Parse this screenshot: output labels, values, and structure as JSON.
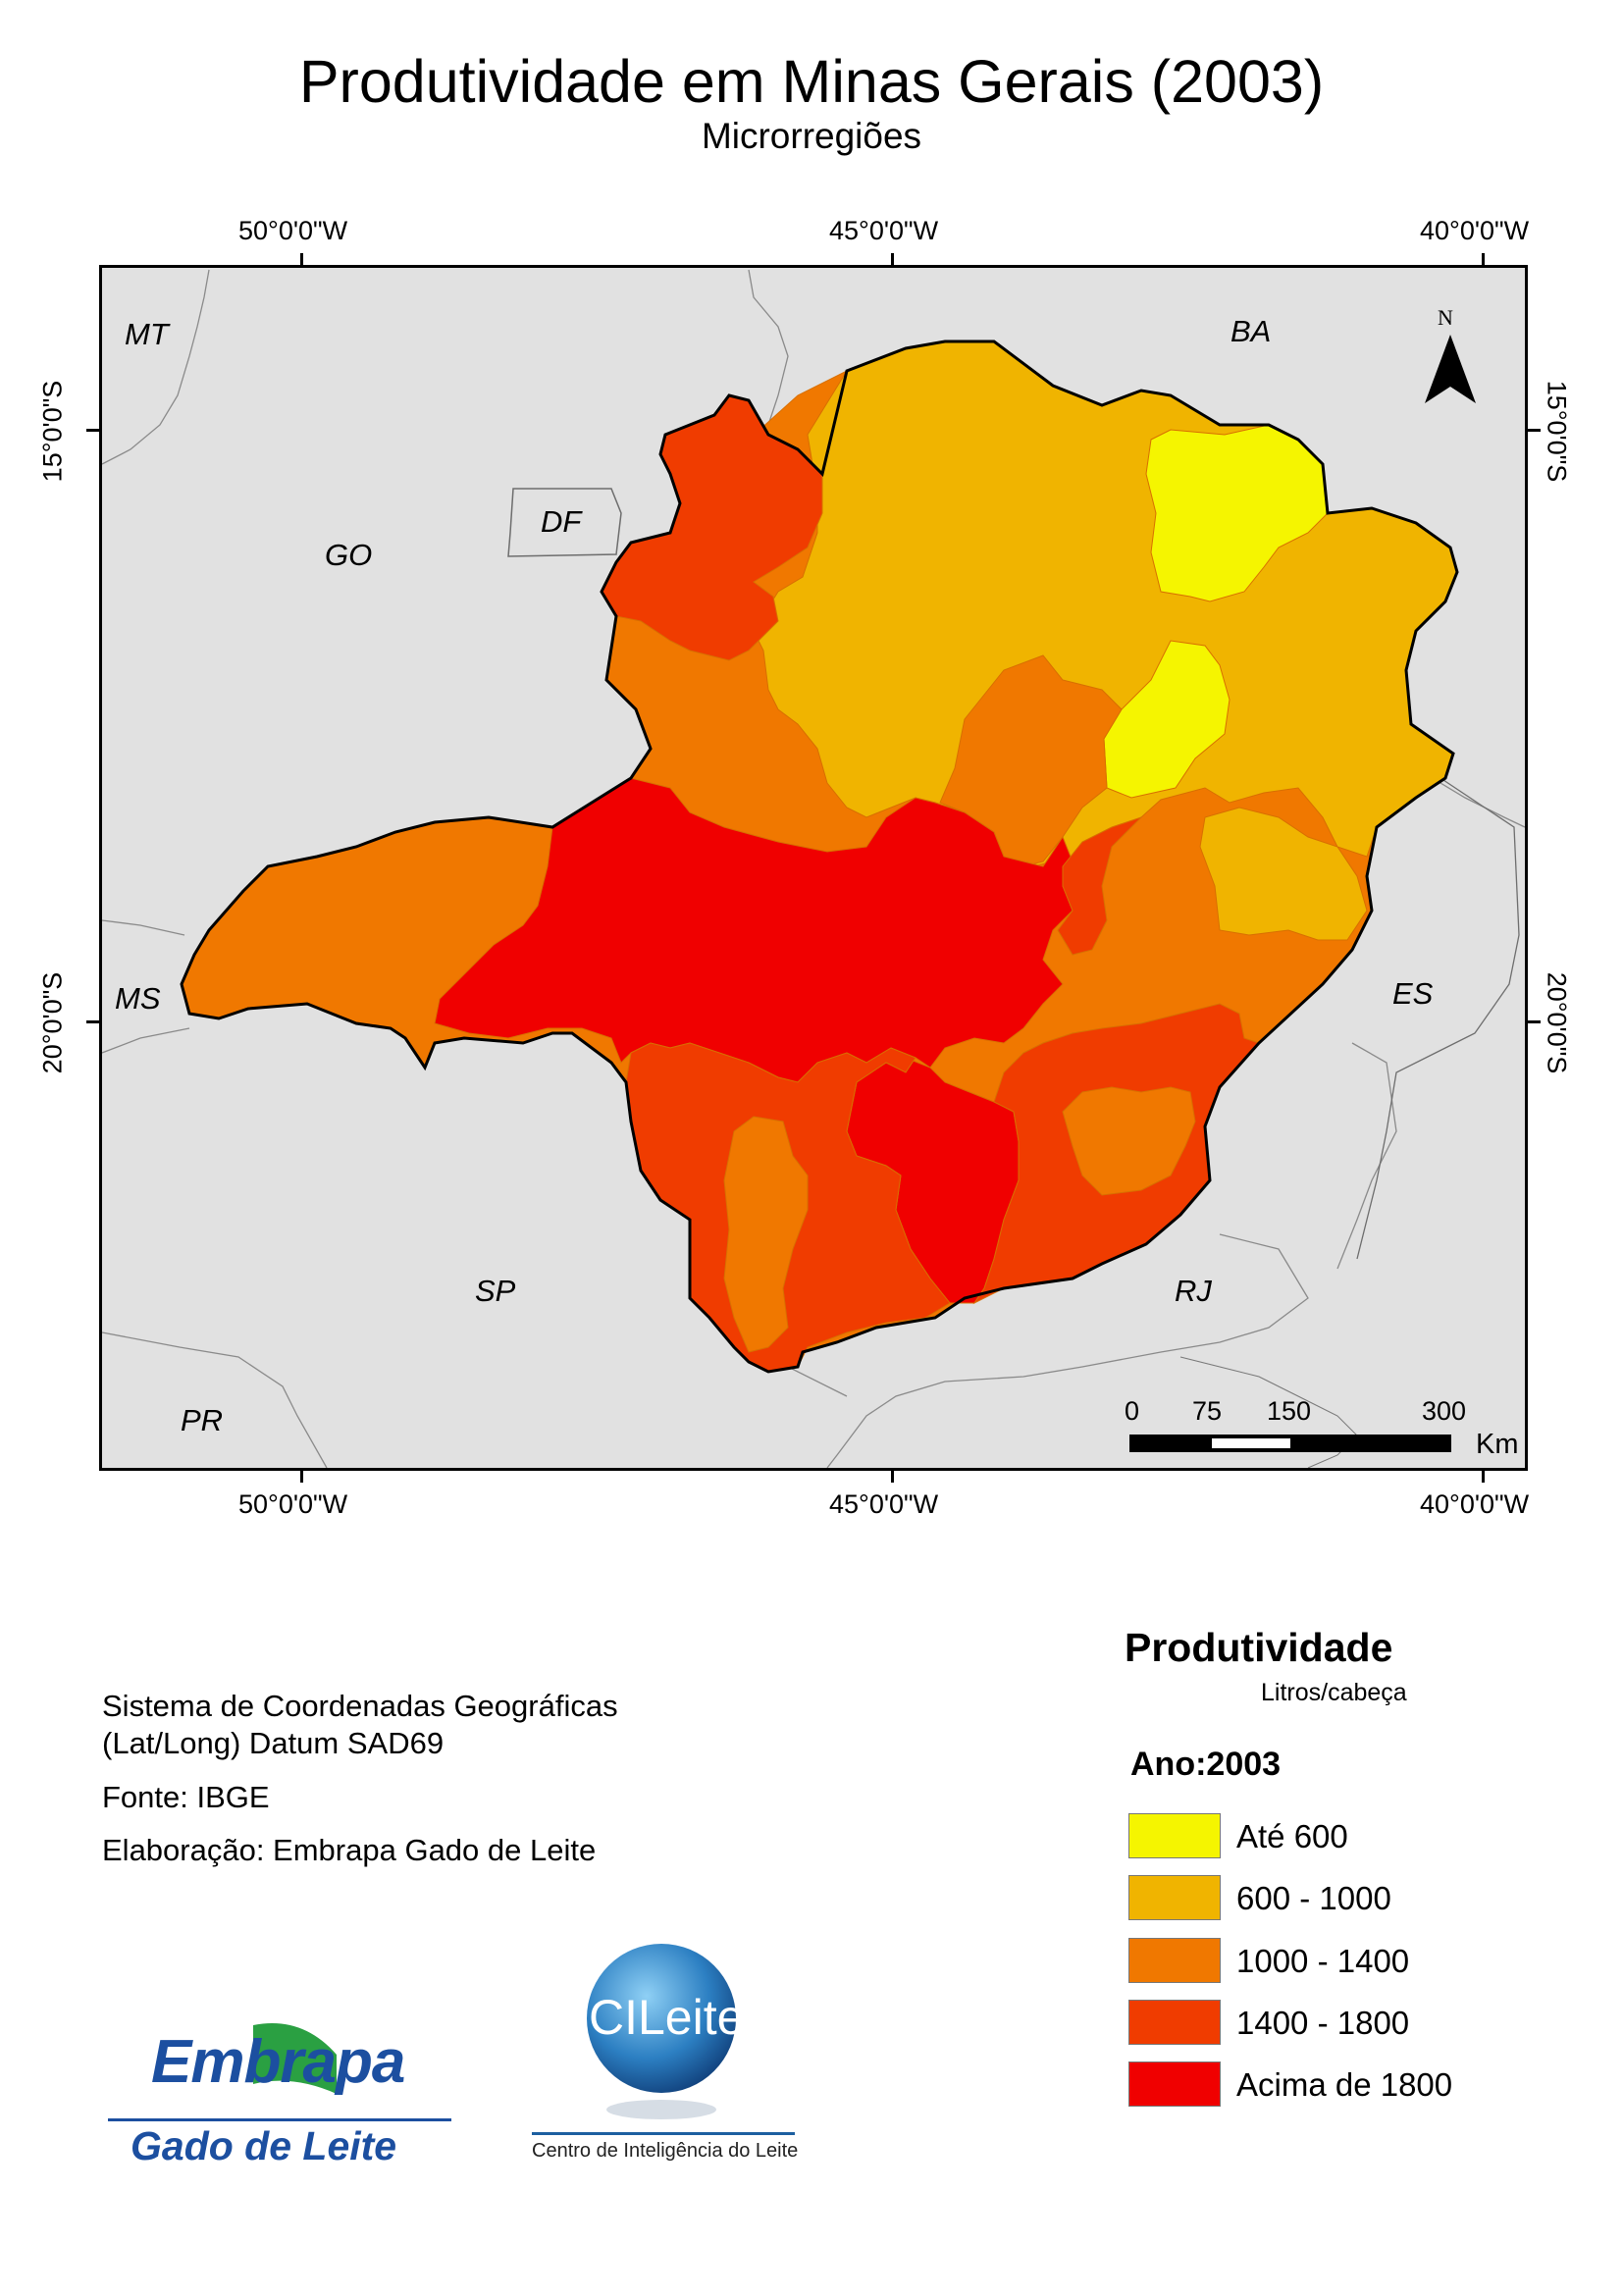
{
  "title": "Produtividade em Minas Gerais (2003)",
  "subtitle": "Microrregiões",
  "axes": {
    "longitudes": [
      "50°0'0\"W",
      "45°0'0\"W",
      "40°0'0\"W"
    ],
    "latitudes": [
      "15°0'0\"S",
      "20°0'0\"S"
    ]
  },
  "map": {
    "neighbors": [
      "MT",
      "BA",
      "DF",
      "GO",
      "MS",
      "ES",
      "SP",
      "RJ",
      "PR"
    ],
    "north_label": "N",
    "scale_bar": {
      "ticks": [
        "0",
        "75",
        "150",
        "300"
      ],
      "unit": "Km"
    },
    "background_color": "#e1e1e1",
    "state": "Minas Gerais",
    "regions_by_class": {
      "Até 600": [
        "north-east block",
        "central-north block"
      ],
      "600 - 1000": [
        "north",
        "north-east",
        "east-central"
      ],
      "1000 - 1400": [
        "triângulo mineiro",
        "north-west",
        "central-east",
        "south pocket"
      ],
      "1400 - 1800": [
        "north-west tip",
        "south-west",
        "south",
        "south-east"
      ],
      "Acima de 1800": [
        "central belt",
        "south-central"
      ]
    }
  },
  "metadata": {
    "line1": "Sistema de Coordenadas Geográficas",
    "line2": "(Lat/Long) Datum SAD69",
    "source": "Fonte: IBGE",
    "author": "Elaboração: Embrapa Gado de Leite"
  },
  "logos": {
    "embrapa_word": "Embrapa",
    "embrapa_sub": "Gado de Leite",
    "cileite_word": "CILeite",
    "cileite_sub": "Centro de Inteligência do Leite"
  },
  "legend": {
    "title": "Produtividade",
    "unit": "Litros/cabeça",
    "year_label": "Ano:2003",
    "classes": [
      {
        "label": "Até 600",
        "color": "#f5f500"
      },
      {
        "label": "600 - 1000",
        "color": "#f0b400"
      },
      {
        "label": "1000 - 1400",
        "color": "#f07800"
      },
      {
        "label": "1400 - 1800",
        "color": "#f03c00"
      },
      {
        "label": "Acima de 1800",
        "color": "#f00000"
      }
    ]
  }
}
